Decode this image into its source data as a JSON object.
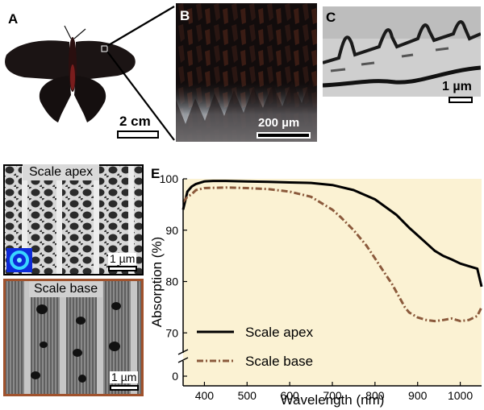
{
  "panels": {
    "a": {
      "letter": "A",
      "scale_label": "2 cm"
    },
    "b": {
      "letter": "B",
      "scale_label": "200 µm"
    },
    "c": {
      "letter": "C",
      "scale_label": "1 µm"
    },
    "d": {
      "letter": "D",
      "top_title": "Scale apex",
      "top_scale": "1 µm",
      "bottom_title": "Scale base",
      "bottom_scale": "1 µm"
    },
    "e": {
      "letter": "E"
    }
  },
  "colors": {
    "apex": "#000000",
    "base": "#8b5a3c",
    "plot_bg": "#fbf2d3",
    "frame_base": "#a0522d"
  },
  "chart_data": {
    "type": "line",
    "xlabel": "Wavelength (nm)",
    "ylabel": "Absorption (%)",
    "xlim": [
      350,
      1050
    ],
    "ylim": [
      68,
      100
    ],
    "x_ticks": [
      400,
      500,
      600,
      700,
      800,
      900,
      1000
    ],
    "y_ticks": [
      70,
      80,
      90,
      100
    ],
    "y_break_tick": 0,
    "legend_position": "bottom-left",
    "series": [
      {
        "name": "Scale apex",
        "style": "solid",
        "x": [
          350,
          360,
          370,
          380,
          400,
          420,
          450,
          500,
          550,
          600,
          650,
          700,
          750,
          800,
          850,
          880,
          900,
          920,
          940,
          960,
          980,
          1000,
          1020,
          1040,
          1050
        ],
        "y": [
          94,
          97.5,
          98.5,
          99,
          99.5,
          99.6,
          99.6,
          99.5,
          99.4,
          99.3,
          99.2,
          98.8,
          97.8,
          96,
          93,
          90.5,
          89,
          87.5,
          86,
          85,
          84.3,
          83.5,
          83,
          82.5,
          79
        ]
      },
      {
        "name": "Scale base",
        "style": "dash-dot",
        "x": [
          350,
          360,
          370,
          380,
          400,
          450,
          500,
          550,
          600,
          650,
          700,
          720,
          750,
          780,
          800,
          820,
          840,
          860,
          870,
          880,
          900,
          920,
          940,
          960,
          980,
          1000,
          1020,
          1040,
          1050
        ],
        "y": [
          95.5,
          96.5,
          97,
          97.8,
          98.2,
          98.3,
          98.2,
          98,
          97.5,
          96.5,
          94,
          92.5,
          90,
          87,
          84.5,
          82,
          79.5,
          76.5,
          75,
          74,
          73,
          72.5,
          72.3,
          72.5,
          72.8,
          72.3,
          72.5,
          73.3,
          75
        ]
      }
    ]
  }
}
